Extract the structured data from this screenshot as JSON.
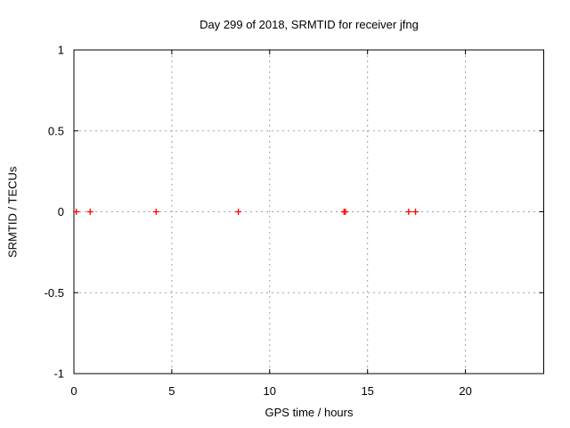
{
  "chart_data": {
    "type": "scatter",
    "title": "Day 299 of 2018, SRMTID for receiver jfng",
    "xlabel": "GPS time / hours",
    "ylabel": "SRMTID / TECUs",
    "xlim": [
      0,
      24
    ],
    "ylim": [
      -1,
      1
    ],
    "xticks": [
      0,
      5,
      10,
      15,
      20
    ],
    "yticks": [
      1,
      0.5,
      0,
      -0.5,
      -1
    ],
    "xtick_labels": [
      "0",
      "5",
      "10",
      "15",
      "20"
    ],
    "ytick_labels": [
      "1",
      "0.5",
      "0",
      "-0.5",
      "-1"
    ],
    "grid": true,
    "legend": "none",
    "marker": "plus",
    "colors": {
      "marker": "#ff0000",
      "grid": "#a0a0a0",
      "axis": "#000000",
      "text": "#000000",
      "background": "#ffffff"
    },
    "series": [
      {
        "name": "SRMTID",
        "x": [
          0.12,
          0.83,
          4.2,
          8.4,
          13.8,
          13.87,
          17.1,
          17.45
        ],
        "y": [
          0,
          0,
          0,
          0,
          0,
          0,
          0,
          0
        ]
      }
    ]
  }
}
